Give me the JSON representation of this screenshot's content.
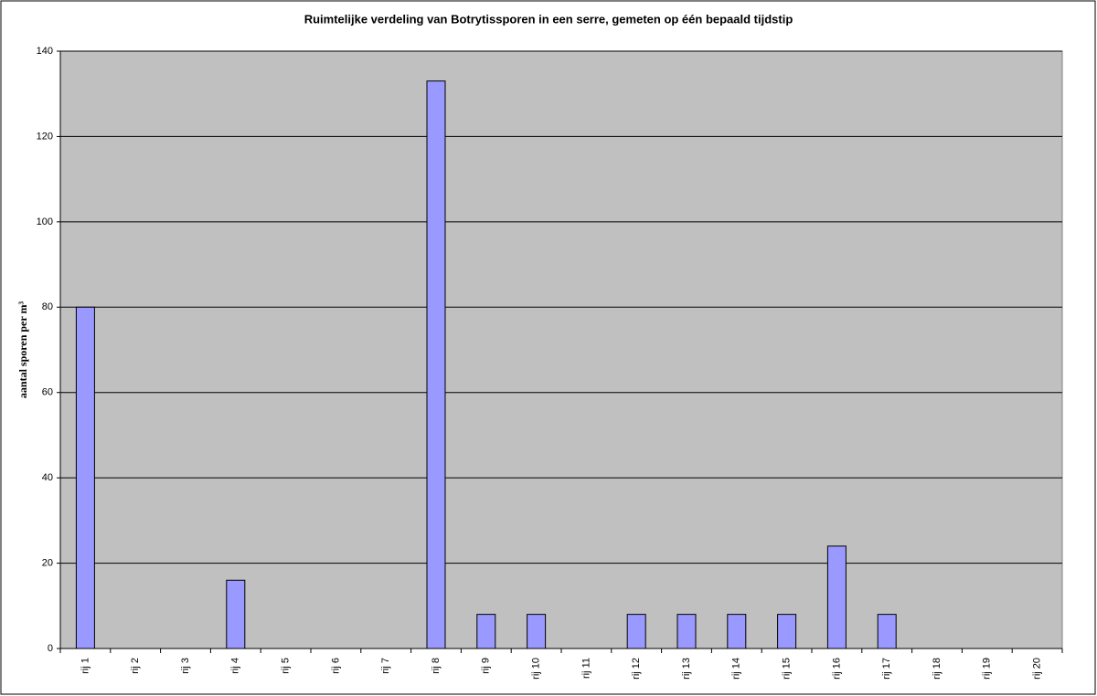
{
  "chart_data": {
    "type": "bar",
    "title": "Ruimtelijke verdeling van Botrytissporen in een serre, gemeten op één bepaald tijdstip",
    "ylabel": "aantal sporen per m³",
    "categories": [
      "rij 1",
      "rij 2",
      "rij 3",
      "rij 4",
      "rij 5",
      "rij 6",
      "rij 7",
      "rij 8",
      "rij 9",
      "rij 10",
      "rij 11",
      "rij 12",
      "rij 13",
      "rij 14",
      "rij 15",
      "rij 16",
      "rij 17",
      "rij 18",
      "rij 19",
      "rij 20"
    ],
    "values": [
      80,
      0,
      0,
      16,
      0,
      0,
      0,
      133,
      8,
      8,
      0,
      8,
      8,
      8,
      8,
      24,
      8,
      0,
      0,
      0
    ],
    "color": "#9999ff",
    "ylim": [
      0,
      140
    ],
    "yticks": [
      0,
      20,
      40,
      60,
      80,
      100,
      120,
      140
    ],
    "grid": true
  }
}
